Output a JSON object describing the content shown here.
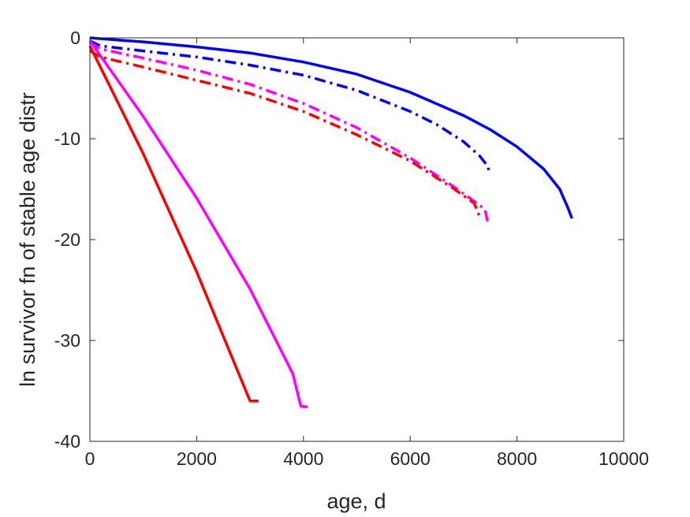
{
  "chart_data": {
    "type": "line",
    "title": "",
    "xlabel": "age, d",
    "ylabel": "ln survivor fn of stable age distr",
    "xlim": [
      0,
      10000
    ],
    "ylim": [
      -40,
      0
    ],
    "xticks": [
      0,
      2000,
      4000,
      6000,
      8000,
      10000
    ],
    "xtick_labels": [
      "0",
      "2000",
      "4000",
      "6000",
      "8000",
      "10000"
    ],
    "yticks": [
      0,
      -10,
      -20,
      -30,
      -40
    ],
    "ytick_labels": [
      "0",
      "-10",
      "-20",
      "-30",
      "-40"
    ],
    "grid": false,
    "series": [
      {
        "color": "#0000ff",
        "style": "solid",
        "points": [
          [
            0,
            0
          ],
          [
            500,
            -0.2
          ],
          [
            1000,
            -0.4
          ],
          [
            2000,
            -0.9
          ],
          [
            3000,
            -1.5
          ],
          [
            4000,
            -2.4
          ],
          [
            5000,
            -3.6
          ],
          [
            6000,
            -5.4
          ],
          [
            7000,
            -7.7
          ],
          [
            7500,
            -9.1
          ],
          [
            8000,
            -10.8
          ],
          [
            8500,
            -13.0
          ],
          [
            8800,
            -15.0
          ],
          [
            8950,
            -16.8
          ],
          [
            9030,
            -17.9
          ]
        ]
      },
      {
        "color": "#0000ff",
        "style": "dashdot",
        "points": [
          [
            0,
            -0.3
          ],
          [
            200,
            -0.8
          ],
          [
            1000,
            -1.3
          ],
          [
            2000,
            -1.9
          ],
          [
            3000,
            -2.7
          ],
          [
            4000,
            -3.7
          ],
          [
            5000,
            -5.2
          ],
          [
            6000,
            -7.3
          ],
          [
            6500,
            -8.6
          ],
          [
            7000,
            -10.3
          ],
          [
            7300,
            -11.7
          ],
          [
            7450,
            -12.7
          ],
          [
            7480,
            -13.3
          ]
        ]
      },
      {
        "color": "#ff00ff",
        "style": "solid",
        "points": [
          [
            0,
            -0.3
          ],
          [
            1000,
            -7.8
          ],
          [
            2000,
            -15.9
          ],
          [
            3000,
            -24.9
          ],
          [
            3800,
            -33.3
          ],
          [
            3950,
            -36.5
          ],
          [
            4080,
            -36.6
          ]
        ]
      },
      {
        "color": "#ff00ff",
        "style": "dashdot",
        "points": [
          [
            0,
            -0.5
          ],
          [
            200,
            -1.1
          ],
          [
            1000,
            -2.0
          ],
          [
            2000,
            -3.2
          ],
          [
            3000,
            -4.6
          ],
          [
            4000,
            -6.5
          ],
          [
            5000,
            -8.9
          ],
          [
            6000,
            -11.9
          ],
          [
            6800,
            -14.7
          ],
          [
            7200,
            -16.2
          ],
          [
            7400,
            -17.0
          ],
          [
            7460,
            -18.5
          ]
        ]
      },
      {
        "color": "#ff0000",
        "style": "solid",
        "points": [
          [
            0,
            -0.8
          ],
          [
            1000,
            -11.5
          ],
          [
            2000,
            -23.2
          ],
          [
            3000,
            -36.0
          ],
          [
            3160,
            -36.0
          ]
        ]
      },
      {
        "color": "#ff0000",
        "style": "dashdot",
        "points": [
          [
            0,
            -1.3
          ],
          [
            200,
            -1.9
          ],
          [
            1000,
            -2.9
          ],
          [
            2000,
            -4.2
          ],
          [
            3000,
            -5.5
          ],
          [
            4000,
            -7.3
          ],
          [
            5000,
            -9.6
          ],
          [
            6000,
            -12.2
          ],
          [
            6800,
            -14.9
          ],
          [
            7200,
            -16.4
          ],
          [
            7320,
            -18.0
          ]
        ]
      }
    ]
  }
}
